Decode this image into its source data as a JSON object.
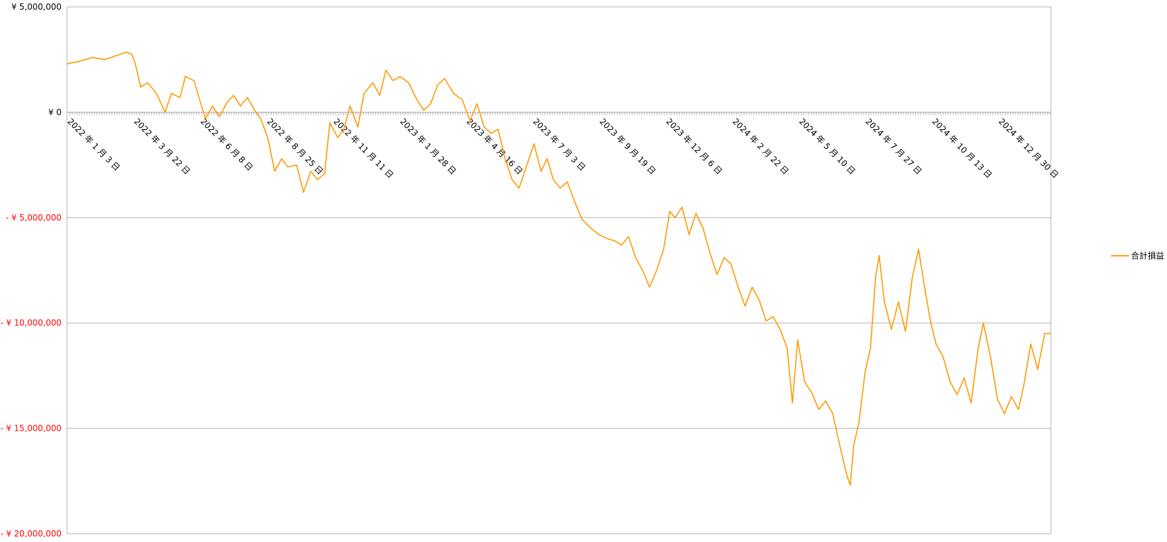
{
  "chart_data": {
    "type": "line",
    "title": "",
    "xlabel": "",
    "ylabel": "",
    "ylim": [
      -20000000,
      5000000
    ],
    "grid": true,
    "legend_position": "right",
    "y_ticks": [
      {
        "value": 5000000,
        "label": "¥ 5,000,000"
      },
      {
        "value": 0,
        "label": "¥ 0"
      },
      {
        "value": -5000000,
        "label": "- ¥ 5,000,000"
      },
      {
        "value": -10000000,
        "label": "- ¥ 10,000,000"
      },
      {
        "value": -15000000,
        "label": "- ¥ 15,000,000"
      },
      {
        "value": -20000000,
        "label": "- ¥ 20,000,000"
      }
    ],
    "x_tick_labels": [
      "2022 年 1 月 3 日",
      "2022 年 3 月 22 日",
      "2022 年 6 月 8 日",
      "2022 年 8 月 25 日",
      "2022 年 11 月 11 日",
      "2023 年 1 月 28 日",
      "2023 年 4 月 16 日",
      "2023 年 7 月 3 日",
      "2023 年 9 月 19 日",
      "2023 年 12 月 6 日",
      "2024 年 2 月 22 日",
      "2024 年 5 月 10 日",
      "2024 年 7 月 27 日",
      "2024 年 10 月 13 日",
      "2024 年 12 月 30 日"
    ],
    "x_range": [
      "2022-01-03",
      "2025-01-30"
    ],
    "series": [
      {
        "name": "合計損益",
        "color": "#ff9900",
        "points": [
          [
            "2022-01-03",
            2300000
          ],
          [
            "2022-01-15",
            2400000
          ],
          [
            "2022-02-01",
            2600000
          ],
          [
            "2022-02-15",
            2500000
          ],
          [
            "2022-03-01",
            2700000
          ],
          [
            "2022-03-12",
            2850000
          ],
          [
            "2022-03-18",
            2750000
          ],
          [
            "2022-03-22",
            2300000
          ],
          [
            "2022-03-28",
            1200000
          ],
          [
            "2022-04-05",
            1400000
          ],
          [
            "2022-04-15",
            900000
          ],
          [
            "2022-04-25",
            0
          ],
          [
            "2022-05-02",
            900000
          ],
          [
            "2022-05-12",
            700000
          ],
          [
            "2022-05-18",
            1700000
          ],
          [
            "2022-05-28",
            1500000
          ],
          [
            "2022-06-04",
            500000
          ],
          [
            "2022-06-10",
            -300000
          ],
          [
            "2022-06-18",
            300000
          ],
          [
            "2022-06-26",
            -200000
          ],
          [
            "2022-07-05",
            500000
          ],
          [
            "2022-07-12",
            800000
          ],
          [
            "2022-07-20",
            300000
          ],
          [
            "2022-07-28",
            700000
          ],
          [
            "2022-08-05",
            100000
          ],
          [
            "2022-08-12",
            -300000
          ],
          [
            "2022-08-20",
            -1200000
          ],
          [
            "2022-08-28",
            -2800000
          ],
          [
            "2022-09-05",
            -2200000
          ],
          [
            "2022-09-12",
            -2600000
          ],
          [
            "2022-09-22",
            -2500000
          ],
          [
            "2022-09-30",
            -3800000
          ],
          [
            "2022-10-08",
            -2800000
          ],
          [
            "2022-10-16",
            -3200000
          ],
          [
            "2022-10-24",
            -2900000
          ],
          [
            "2022-10-30",
            -500000
          ],
          [
            "2022-11-08",
            -1200000
          ],
          [
            "2022-11-15",
            -800000
          ],
          [
            "2022-11-22",
            300000
          ],
          [
            "2022-12-01",
            -700000
          ],
          [
            "2022-12-08",
            900000
          ],
          [
            "2022-12-18",
            1400000
          ],
          [
            "2022-12-26",
            800000
          ],
          [
            "2023-01-02",
            2000000
          ],
          [
            "2023-01-10",
            1500000
          ],
          [
            "2023-01-18",
            1700000
          ],
          [
            "2023-01-28",
            1400000
          ],
          [
            "2023-02-05",
            700000
          ],
          [
            "2023-02-14",
            100000
          ],
          [
            "2023-02-22",
            400000
          ],
          [
            "2023-03-02",
            1300000
          ],
          [
            "2023-03-10",
            1600000
          ],
          [
            "2023-03-20",
            900000
          ],
          [
            "2023-03-30",
            600000
          ],
          [
            "2023-04-08",
            -400000
          ],
          [
            "2023-04-16",
            400000
          ],
          [
            "2023-04-24",
            -700000
          ],
          [
            "2023-05-02",
            -1000000
          ],
          [
            "2023-05-10",
            -800000
          ],
          [
            "2023-05-18",
            -2200000
          ],
          [
            "2023-05-26",
            -3200000
          ],
          [
            "2023-06-03",
            -3600000
          ],
          [
            "2023-06-12",
            -2500000
          ],
          [
            "2023-06-20",
            -1500000
          ],
          [
            "2023-06-28",
            -2800000
          ],
          [
            "2023-07-05",
            -2200000
          ],
          [
            "2023-07-12",
            -3200000
          ],
          [
            "2023-07-20",
            -3600000
          ],
          [
            "2023-07-28",
            -3300000
          ],
          [
            "2023-08-05",
            -4200000
          ],
          [
            "2023-08-14",
            -5100000
          ],
          [
            "2023-08-24",
            -5500000
          ],
          [
            "2023-09-02",
            -5800000
          ],
          [
            "2023-09-12",
            -6000000
          ],
          [
            "2023-09-20",
            -6100000
          ],
          [
            "2023-09-28",
            -6300000
          ],
          [
            "2023-10-06",
            -5900000
          ],
          [
            "2023-10-14",
            -6900000
          ],
          [
            "2023-10-22",
            -7500000
          ],
          [
            "2023-10-30",
            -8300000
          ],
          [
            "2023-11-07",
            -7500000
          ],
          [
            "2023-11-15",
            -6500000
          ],
          [
            "2023-11-22",
            -4700000
          ],
          [
            "2023-11-28",
            -5000000
          ],
          [
            "2023-12-06",
            -4500000
          ],
          [
            "2023-12-14",
            -5800000
          ],
          [
            "2023-12-22",
            -4800000
          ],
          [
            "2023-12-30",
            -5500000
          ],
          [
            "2024-01-07",
            -6700000
          ],
          [
            "2024-01-15",
            -7700000
          ],
          [
            "2024-01-23",
            -6900000
          ],
          [
            "2024-01-31",
            -7200000
          ],
          [
            "2024-02-08",
            -8300000
          ],
          [
            "2024-02-16",
            -9200000
          ],
          [
            "2024-02-24",
            -8300000
          ],
          [
            "2024-03-03",
            -8900000
          ],
          [
            "2024-03-11",
            -9900000
          ],
          [
            "2024-03-19",
            -9700000
          ],
          [
            "2024-03-27",
            -10300000
          ],
          [
            "2024-04-04",
            -11200000
          ],
          [
            "2024-04-10",
            -13800000
          ],
          [
            "2024-04-16",
            -10800000
          ],
          [
            "2024-04-24",
            -12800000
          ],
          [
            "2024-05-02",
            -13300000
          ],
          [
            "2024-05-10",
            -14100000
          ],
          [
            "2024-05-18",
            -13700000
          ],
          [
            "2024-05-26",
            -14300000
          ],
          [
            "2024-06-03",
            -15800000
          ],
          [
            "2024-06-11",
            -17200000
          ],
          [
            "2024-06-15",
            -17700000
          ],
          [
            "2024-06-19",
            -15800000
          ],
          [
            "2024-06-25",
            -14700000
          ],
          [
            "2024-07-02",
            -12300000
          ],
          [
            "2024-07-08",
            -11200000
          ],
          [
            "2024-07-14",
            -7800000
          ],
          [
            "2024-07-18",
            -6800000
          ],
          [
            "2024-07-24",
            -9000000
          ],
          [
            "2024-08-01",
            -10300000
          ],
          [
            "2024-08-09",
            -9000000
          ],
          [
            "2024-08-17",
            -10400000
          ],
          [
            "2024-08-25",
            -7800000
          ],
          [
            "2024-09-01",
            -6500000
          ],
          [
            "2024-09-09",
            -8600000
          ],
          [
            "2024-09-15",
            -10000000
          ],
          [
            "2024-09-21",
            -11000000
          ],
          [
            "2024-09-29",
            -11600000
          ],
          [
            "2024-10-07",
            -12800000
          ],
          [
            "2024-10-15",
            -13400000
          ],
          [
            "2024-10-23",
            -12600000
          ],
          [
            "2024-10-31",
            -13800000
          ],
          [
            "2024-11-08",
            -11200000
          ],
          [
            "2024-11-14",
            -10000000
          ],
          [
            "2024-11-22",
            -11600000
          ],
          [
            "2024-11-30",
            -13600000
          ],
          [
            "2024-12-08",
            -14300000
          ],
          [
            "2024-12-16",
            -13500000
          ],
          [
            "2024-12-24",
            -14100000
          ],
          [
            "2024-12-30",
            -13000000
          ],
          [
            "2025-01-07",
            -11000000
          ],
          [
            "2025-01-15",
            -12200000
          ],
          [
            "2025-01-23",
            -10500000
          ],
          [
            "2025-01-30",
            -10500000
          ]
        ]
      }
    ]
  },
  "colors": {
    "series_line": "#ff9900",
    "negative_tick_label": "#ff0000",
    "positive_tick_label": "#000000",
    "gridline": "#b3b3b3",
    "axis": "#b3b3b3"
  }
}
